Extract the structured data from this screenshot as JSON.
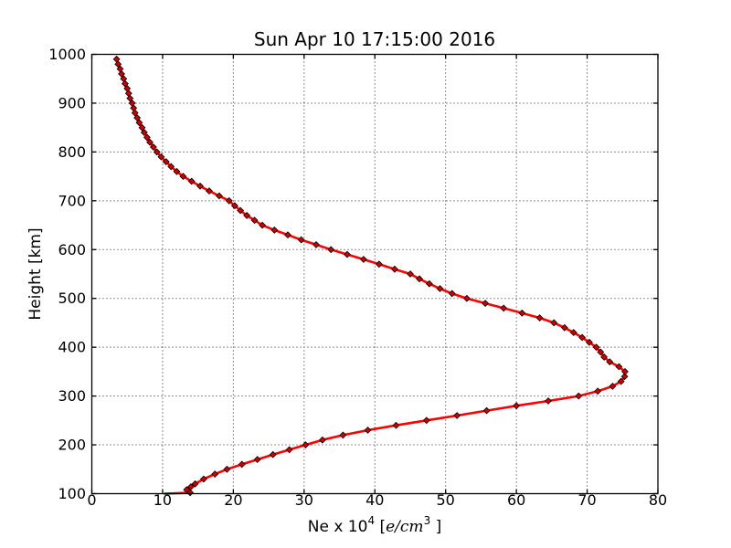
{
  "figure": {
    "background": "#ffffff",
    "frame_color": "#000000"
  },
  "chart_data": {
    "type": "line",
    "title": "Sun Apr 10 17:15:00 2016",
    "xlabel": "Ne x 10^4  [e/cm^3 ]",
    "xlabel_parts": [
      {
        "t": "Ne x 10"
      },
      {
        "t": "4",
        "sup": true
      },
      {
        "t": "  ["
      },
      {
        "t": "e/cm",
        "italic": true
      },
      {
        "t": "3",
        "sup": true
      },
      {
        "t": " ]"
      }
    ],
    "ylabel": "Height [km]",
    "xlim": [
      0,
      80
    ],
    "ylim": [
      100,
      1000
    ],
    "xticks": [
      0,
      10,
      20,
      30,
      40,
      50,
      60,
      70,
      80
    ],
    "yticks": [
      100,
      200,
      300,
      400,
      500,
      600,
      700,
      800,
      900,
      1000
    ],
    "grid": {
      "visible": true,
      "style": "dotted",
      "color": "#222222"
    },
    "legend": null,
    "series": [
      {
        "name": "electron-density-profile",
        "line_color": "#ff0000",
        "line_width": 2.6,
        "marker": "diamond",
        "marker_fill": "#cc0000",
        "marker_edge": "#200000",
        "marker_size": 3.3,
        "points_ne_height": [
          [
            10.3,
            100
          ],
          [
            13.9,
            102
          ],
          [
            13.4,
            108
          ],
          [
            14.0,
            114
          ],
          [
            14.6,
            120
          ],
          [
            15.8,
            130
          ],
          [
            17.4,
            140
          ],
          [
            19.1,
            150
          ],
          [
            21.2,
            160
          ],
          [
            23.4,
            170
          ],
          [
            25.6,
            180
          ],
          [
            27.9,
            190
          ],
          [
            30.2,
            200
          ],
          [
            32.6,
            210
          ],
          [
            35.5,
            220
          ],
          [
            39.0,
            230
          ],
          [
            43.0,
            240
          ],
          [
            47.3,
            250
          ],
          [
            51.6,
            260
          ],
          [
            55.8,
            270
          ],
          [
            60.0,
            280
          ],
          [
            64.5,
            290
          ],
          [
            68.8,
            300
          ],
          [
            71.5,
            310
          ],
          [
            73.6,
            320
          ],
          [
            74.8,
            330
          ],
          [
            75.3,
            340
          ],
          [
            75.35,
            350
          ],
          [
            74.5,
            360
          ],
          [
            73.2,
            370
          ],
          [
            72.4,
            380
          ],
          [
            71.9,
            390
          ],
          [
            71.3,
            400
          ],
          [
            70.3,
            410
          ],
          [
            69.3,
            420
          ],
          [
            68.1,
            430
          ],
          [
            66.8,
            440
          ],
          [
            65.3,
            450
          ],
          [
            63.3,
            460
          ],
          [
            60.8,
            470
          ],
          [
            58.2,
            480
          ],
          [
            55.6,
            490
          ],
          [
            53.0,
            500
          ],
          [
            50.9,
            510
          ],
          [
            49.2,
            520
          ],
          [
            47.7,
            530
          ],
          [
            46.3,
            540
          ],
          [
            45.0,
            550
          ],
          [
            42.8,
            560
          ],
          [
            40.6,
            570
          ],
          [
            38.4,
            580
          ],
          [
            36.1,
            590
          ],
          [
            33.8,
            600
          ],
          [
            31.7,
            610
          ],
          [
            29.6,
            620
          ],
          [
            27.7,
            630
          ],
          [
            25.8,
            640
          ],
          [
            24.1,
            650
          ],
          [
            23.0,
            660
          ],
          [
            21.9,
            670
          ],
          [
            21.0,
            680
          ],
          [
            20.2,
            690
          ],
          [
            19.4,
            700
          ],
          [
            18.0,
            710
          ],
          [
            16.6,
            720
          ],
          [
            15.3,
            730
          ],
          [
            14.1,
            740
          ],
          [
            12.9,
            750
          ],
          [
            12.0,
            760
          ],
          [
            11.2,
            770
          ],
          [
            10.5,
            780
          ],
          [
            9.8,
            790
          ],
          [
            9.2,
            800
          ],
          [
            8.7,
            810
          ],
          [
            8.2,
            820
          ],
          [
            7.8,
            830
          ],
          [
            7.4,
            840
          ],
          [
            7.1,
            850
          ],
          [
            6.7,
            860
          ],
          [
            6.4,
            870
          ],
          [
            6.1,
            880
          ],
          [
            5.9,
            890
          ],
          [
            5.7,
            900
          ],
          [
            5.4,
            910
          ],
          [
            5.2,
            920
          ],
          [
            5.0,
            930
          ],
          [
            4.7,
            940
          ],
          [
            4.5,
            950
          ],
          [
            4.2,
            960
          ],
          [
            4.0,
            970
          ],
          [
            3.7,
            980
          ],
          [
            3.5,
            990
          ]
        ]
      }
    ]
  }
}
